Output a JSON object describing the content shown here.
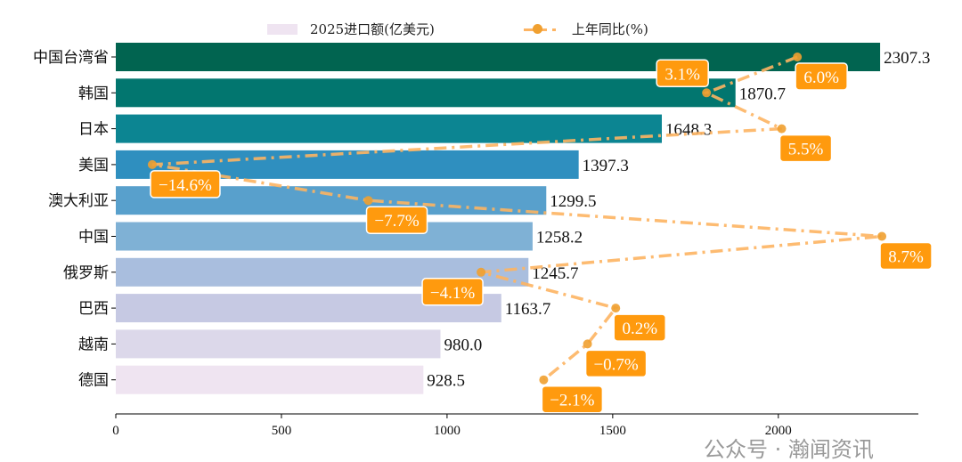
{
  "chart_data": {
    "type": "bar",
    "orientation": "horizontal",
    "categories": [
      "中国台湾省",
      "韩国",
      "日本",
      "美国",
      "澳大利亚",
      "中国",
      "俄罗斯",
      "巴西",
      "越南",
      "德国"
    ],
    "series": [
      {
        "name": "2025进口额(亿美元)",
        "type": "bar",
        "values": [
          2307.3,
          1870.7,
          1648.3,
          1397.3,
          1299.5,
          1258.2,
          1245.7,
          1163.7,
          980.0,
          928.5
        ]
      },
      {
        "name": "上年同比(%)",
        "type": "line",
        "values": [
          6.0,
          3.1,
          5.5,
          -14.6,
          -7.7,
          8.7,
          -4.1,
          0.2,
          -0.7,
          -2.1
        ],
        "labels": [
          "6.0%",
          "3.1%",
          "5.5%",
          "−14.6%",
          "−7.7%",
          "8.7%",
          "−4.1%",
          "0.2%",
          "−0.7%",
          "−2.1%"
        ]
      }
    ],
    "bar_labels": [
      "2307.3",
      "1870.7",
      "1648.3",
      "1397.3",
      "1299.5",
      "1258.2",
      "1245.7",
      "1163.7",
      "980.0",
      "928.5"
    ],
    "xlim": [
      0,
      2422.7
    ],
    "xticks": [
      0,
      500,
      1000,
      1500,
      2000
    ],
    "xtick_labels": [
      "0",
      "500",
      "1000",
      "1500",
      "2000"
    ],
    "secondary_axis_hidden": true,
    "legend_placement": "top-center",
    "grid": false,
    "colors": {
      "bars": [
        "#016450",
        "#02766f",
        "#0c8592",
        "#2f8fbf",
        "#58a0cc",
        "#7fb1d5",
        "#a9bede",
        "#c6c9e3",
        "#dcd8ea",
        "#efe4f1"
      ],
      "line": "#fdb462",
      "marker": "#f0a030",
      "label_box": "#ff9a0e"
    }
  },
  "watermark": "公众号 · 瀚闻资讯"
}
